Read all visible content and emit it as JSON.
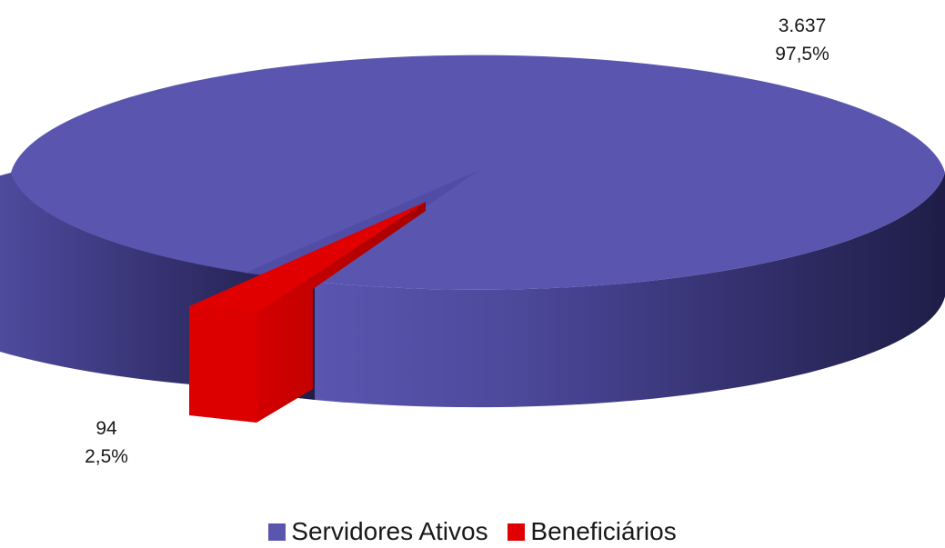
{
  "chart_data": {
    "type": "pie",
    "style": "3d-exploded",
    "categories": [
      "Servidores Ativos",
      "Beneficiários"
    ],
    "values": [
      3637,
      94
    ],
    "value_labels": [
      "3.637",
      "94"
    ],
    "percent_labels": [
      "97,5%",
      "2,5%"
    ],
    "colors": [
      "#5a56b0",
      "#e00000"
    ],
    "legend_position": "bottom"
  }
}
